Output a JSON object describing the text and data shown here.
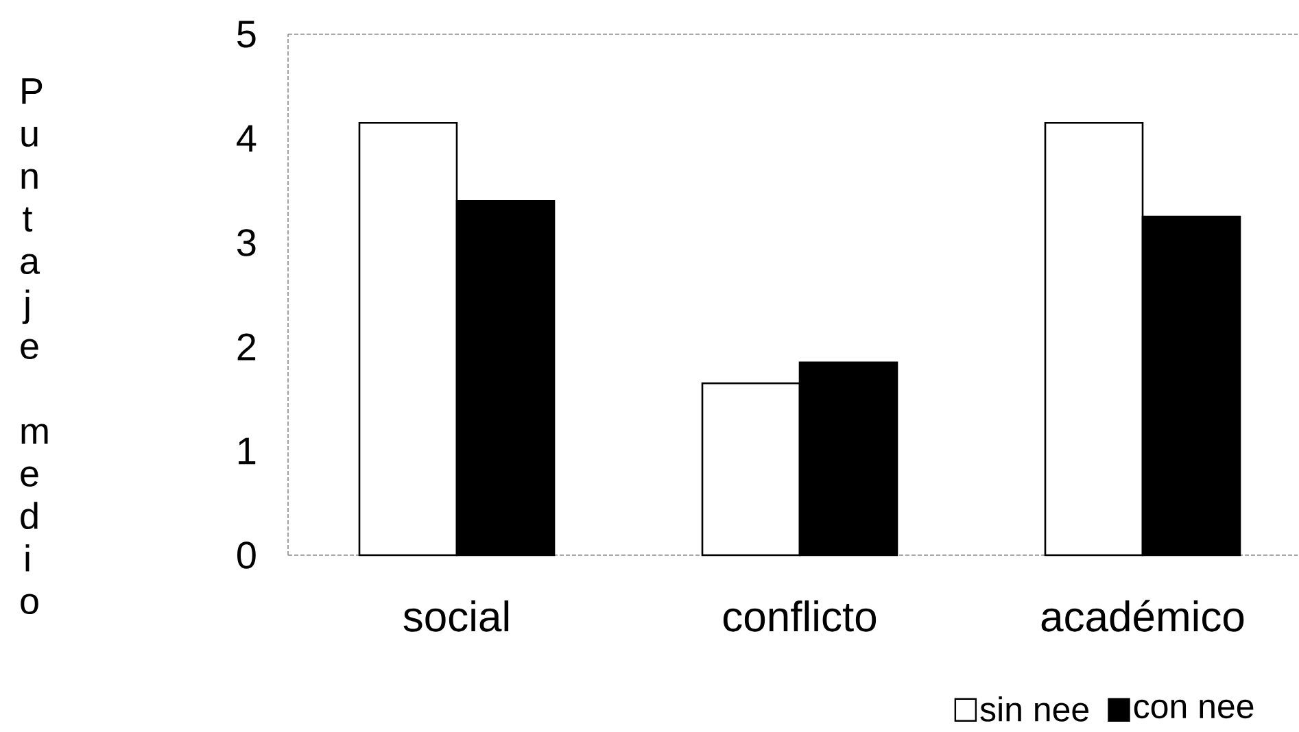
{
  "chart_data": {
    "type": "bar",
    "ylabel": "Puntaje medio",
    "categories": [
      "social",
      "conflicto",
      "académico"
    ],
    "series": [
      {
        "name": "sin nee",
        "color": "#ffffff",
        "values": [
          4.15,
          1.65,
          4.15
        ]
      },
      {
        "name": "con nee",
        "color": "#000000",
        "values": [
          3.4,
          1.85,
          3.25
        ]
      }
    ],
    "ylim": [
      0,
      5
    ],
    "yticks": [
      0,
      1,
      2,
      3,
      4,
      5
    ],
    "legend": "bottom right"
  }
}
